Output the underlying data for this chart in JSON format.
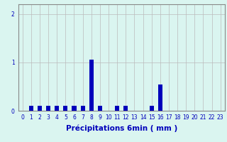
{
  "title": "",
  "xlabel": "Précipitations 6min ( mm )",
  "ylabel": "",
  "xlim": [
    -0.5,
    23.5
  ],
  "ylim": [
    0,
    2.2
  ],
  "yticks": [
    0,
    1,
    2
  ],
  "xtick_labels": [
    "0",
    "1",
    "2",
    "3",
    "4",
    "5",
    "6",
    "7",
    "8",
    "9",
    "10",
    "11",
    "12",
    "13",
    "14",
    "15",
    "16",
    "17",
    "18",
    "19",
    "20",
    "21",
    "22",
    "23"
  ],
  "bar_color": "#0000bb",
  "background_color": "#daf5f0",
  "grid_color": "#bbbbbb",
  "values": [
    0.0,
    0.1,
    0.1,
    0.1,
    0.1,
    0.1,
    0.1,
    0.1,
    1.05,
    0.1,
    0.0,
    0.1,
    0.1,
    0.0,
    0.0,
    0.1,
    0.55,
    0.0,
    0.0,
    0.0,
    0.0,
    0.0,
    0.0,
    0.0
  ],
  "bar_width": 0.5,
  "tick_fontsize": 5.5,
  "label_fontsize": 7.5
}
